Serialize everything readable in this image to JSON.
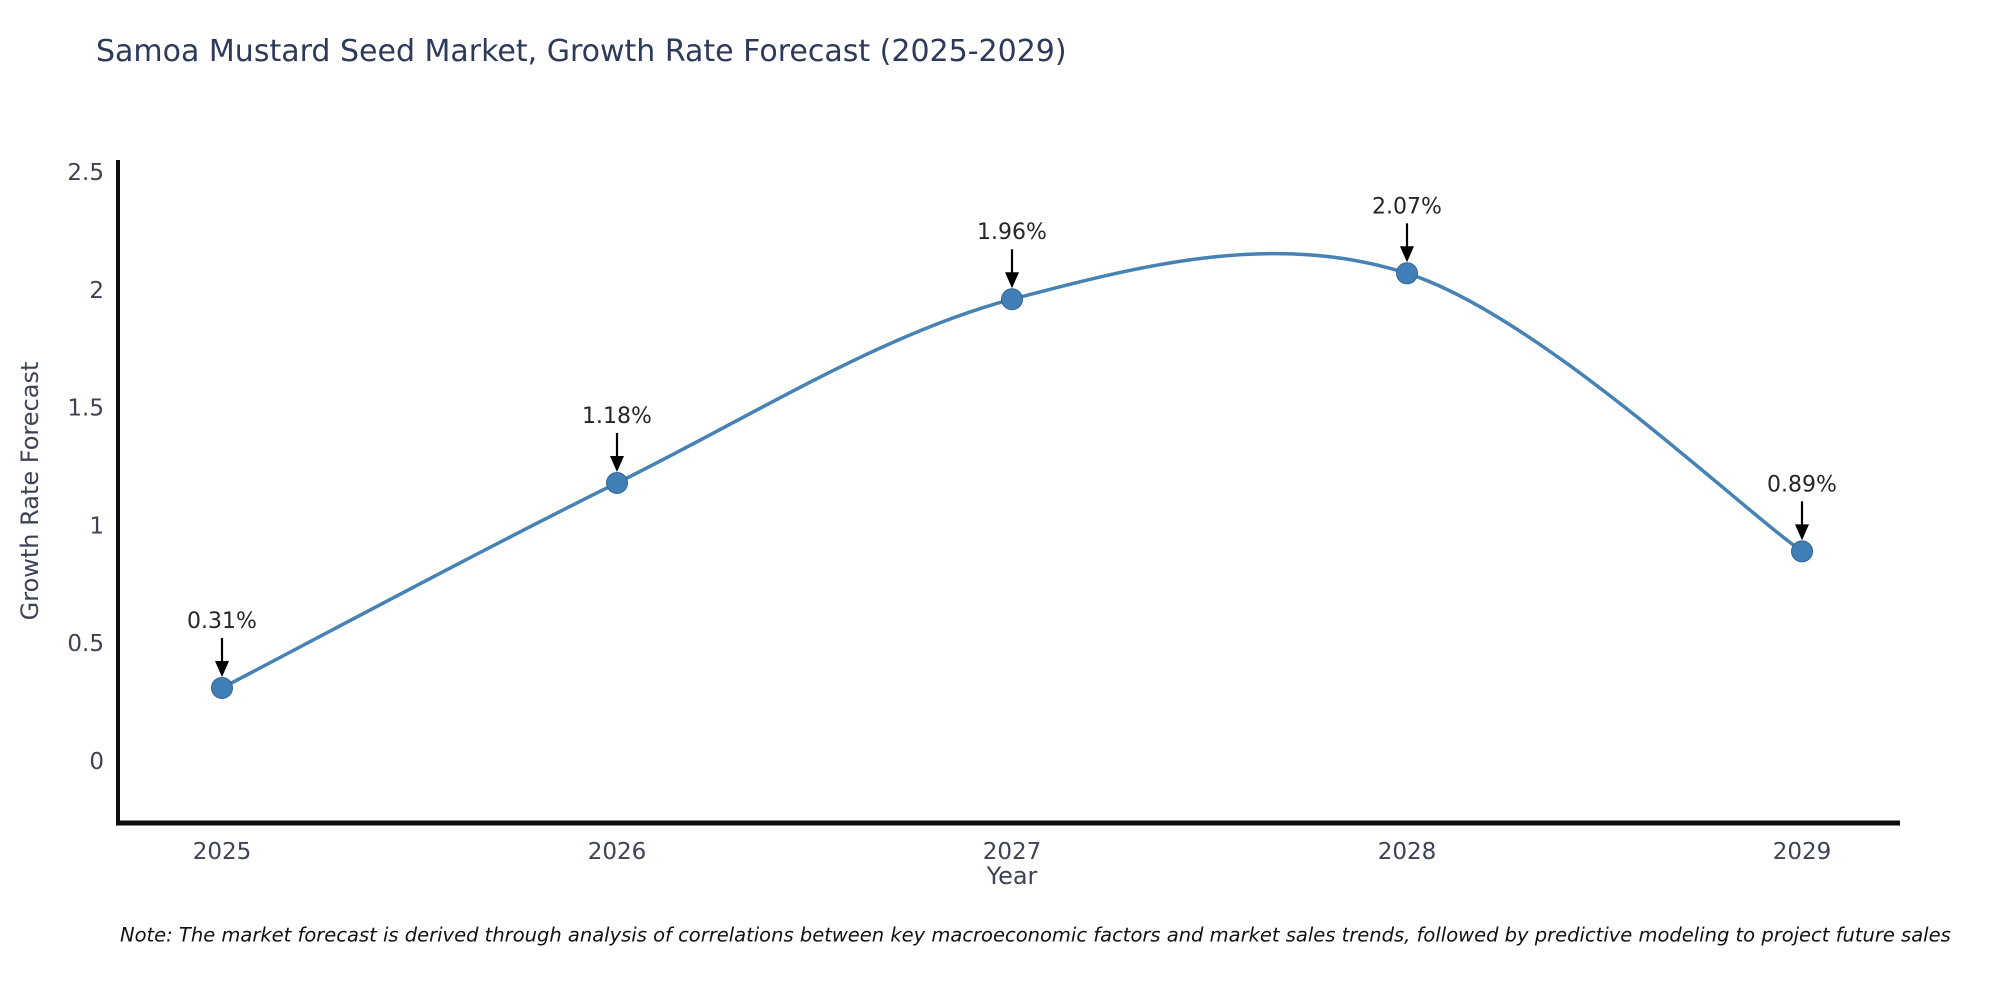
{
  "note": {
    "text": "Note: The market forecast is derived through analysis of correlations between key macroeconomic factors and market sales trends, followed by predictive modeling to project future sales"
  },
  "chart_data": {
    "type": "line",
    "title": "Samoa Mustard Seed Market, Growth Rate Forecast (2025-2029)",
    "xlabel": "Year",
    "ylabel": "Growth Rate Forecast",
    "x": [
      2025,
      2026,
      2027,
      2028,
      2029
    ],
    "values": [
      0.31,
      1.18,
      1.96,
      2.07,
      0.89
    ],
    "point_labels": [
      "0.31%",
      "1.18%",
      "1.96%",
      "2.07%",
      "0.89%"
    ],
    "xtick_labels": [
      "2025",
      "2026",
      "2027",
      "2028",
      "2029"
    ],
    "ytick_values": [
      0,
      0.5,
      1,
      1.5,
      2,
      2.5
    ],
    "ytick_labels": [
      "0",
      "0.5",
      "1",
      "1.5",
      "2",
      "2.5"
    ],
    "ylim": [
      -0.26,
      2.55
    ],
    "grid": false,
    "legend": null,
    "smooth": true,
    "line_color": "#4682b4",
    "marker_color": "#3f7fb8",
    "marker_edge_color": "#37648f",
    "spine_color": "#0d0d0d",
    "tick_label_color": "#3d4254",
    "annotation_color": "#262626",
    "arrow_color": "#000000"
  }
}
